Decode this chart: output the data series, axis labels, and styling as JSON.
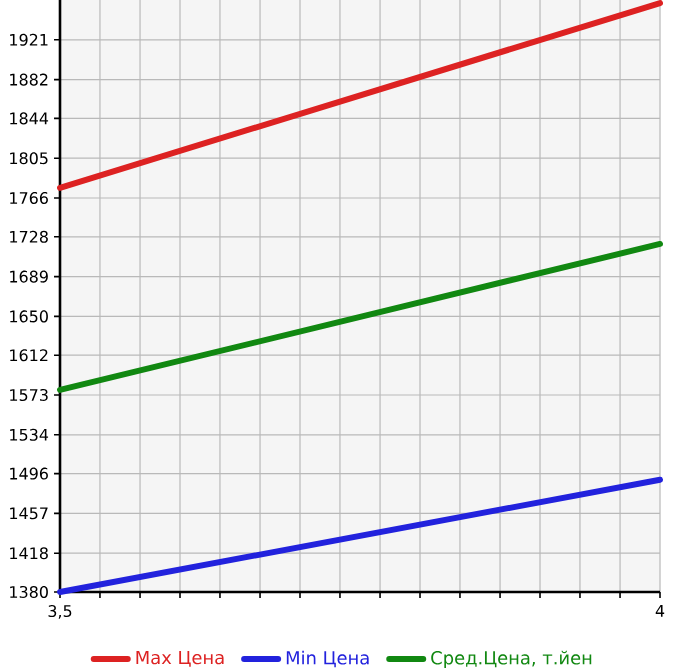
{
  "chart_data": {
    "type": "line",
    "x": [
      3.5,
      4
    ],
    "series": [
      {
        "name": "Max Цена",
        "color": "#dd2222",
        "values": [
          1776,
          1957
        ]
      },
      {
        "name": "Min Цена",
        "color": "#2222dd",
        "values": [
          1380,
          1490
        ]
      },
      {
        "name": "Сред.Цена, т.йен",
        "color": "#118811",
        "values": [
          1578,
          1721
        ]
      }
    ],
    "xlim": [
      3.5,
      4
    ],
    "xticks": [
      {
        "value": 3.5,
        "label": "3,5"
      },
      {
        "value": 3.5333,
        "label": null
      },
      {
        "value": 3.5667,
        "label": null
      },
      {
        "value": 3.6,
        "label": null
      },
      {
        "value": 3.6333,
        "label": null
      },
      {
        "value": 3.6667,
        "label": null
      },
      {
        "value": 3.7,
        "label": null
      },
      {
        "value": 3.7333,
        "label": null
      },
      {
        "value": 3.7667,
        "label": null
      },
      {
        "value": 3.8,
        "label": null
      },
      {
        "value": 3.8333,
        "label": null
      },
      {
        "value": 3.8667,
        "label": null
      },
      {
        "value": 3.9,
        "label": null
      },
      {
        "value": 3.9333,
        "label": null
      },
      {
        "value": 3.9667,
        "label": null
      },
      {
        "value": 4,
        "label": "4"
      }
    ],
    "ylim": [
      1380,
      1960
    ],
    "yticks": [
      1380,
      1418,
      1457,
      1496,
      1534,
      1573,
      1612,
      1650,
      1689,
      1728,
      1766,
      1805,
      1844,
      1882,
      1921
    ],
    "grid": true,
    "legend": "bottom"
  }
}
